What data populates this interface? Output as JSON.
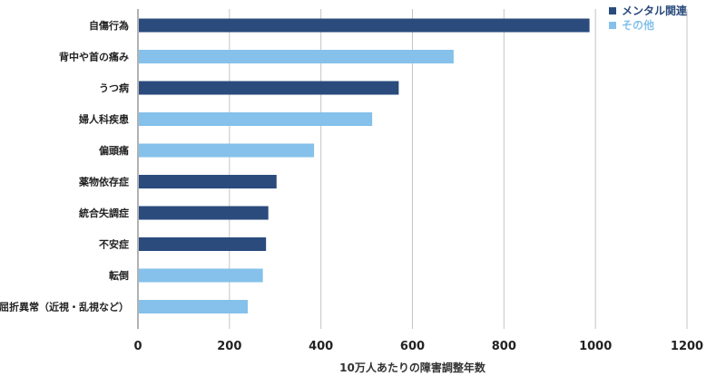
{
  "chart_data": {
    "type": "bar",
    "orientation": "horizontal",
    "categories": [
      "自傷行為",
      "背中や首の痛み",
      "うつ病",
      "婦人科疾患",
      "偏頭痛",
      "薬物依存症",
      "統合失調症",
      "不安症",
      "転倒",
      "屈折異常（近視・乱視など）"
    ],
    "values": [
      987,
      690,
      570,
      512,
      385,
      303,
      285,
      280,
      273,
      240
    ],
    "groups": [
      "メンタル関連",
      "その他",
      "メンタル関連",
      "その他",
      "その他",
      "メンタル関連",
      "メンタル関連",
      "メンタル関連",
      "その他",
      "その他"
    ],
    "legend": [
      {
        "name": "メンタル関連",
        "color": "#2a4b7c"
      },
      {
        "name": "その他",
        "color": "#85c1ea"
      }
    ],
    "xlabel": "10万人あたりの障害調整年数",
    "xlim": [
      0,
      1200
    ],
    "xticks": [
      0,
      200,
      400,
      600,
      800,
      1000,
      1200
    ],
    "grid": true,
    "legend_position": "top-right"
  }
}
